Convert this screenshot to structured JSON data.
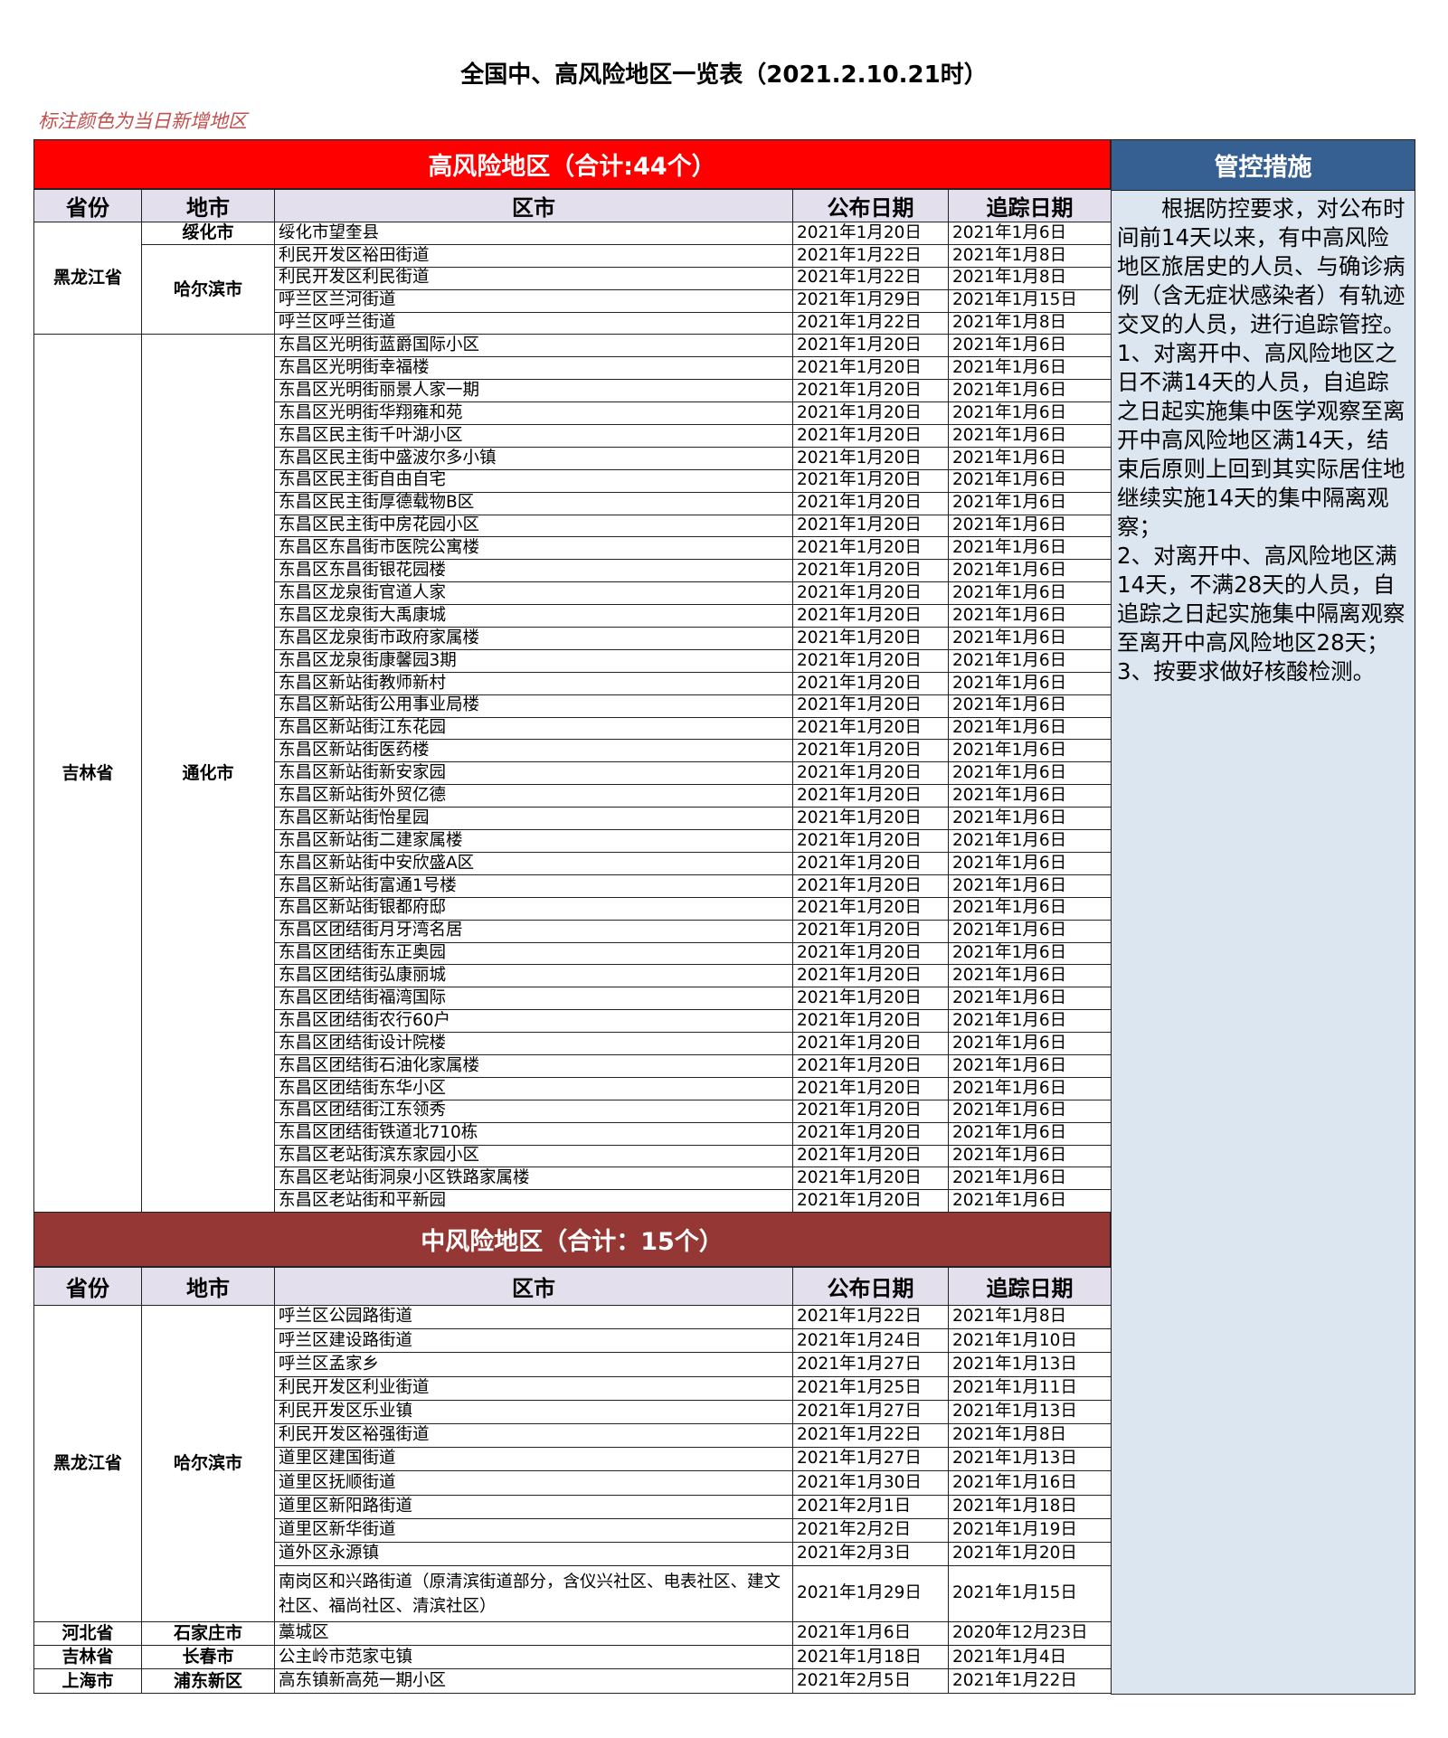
{
  "title": "全国中、高风险地区一览表（2021.2.10.21时）",
  "note": "标注颜色为当日新增地区",
  "colors": {
    "high_banner": "#ff0000",
    "mid_banner": "#953735",
    "control_header": "#366092",
    "control_body": "#dce6f1",
    "column_header": "#e4dfec",
    "note": "#c0504d"
  },
  "columns": [
    "省份",
    "地市",
    "区市",
    "公布日期",
    "追踪日期"
  ],
  "high_risk": {
    "title": "高风险地区（合计:44个）",
    "groups": [
      {
        "province": "黑龙江省",
        "cities": [
          {
            "city": "绥化市",
            "rows": [
              [
                "绥化市望奎县",
                "2021年1月20日",
                "2021年1月6日"
              ]
            ]
          },
          {
            "city": "哈尔滨市",
            "rows": [
              [
                "利民开发区裕田街道",
                "2021年1月22日",
                "2021年1月8日"
              ],
              [
                "利民开发区利民街道",
                "2021年1月22日",
                "2021年1月8日"
              ],
              [
                "呼兰区兰河街道",
                "2021年1月29日",
                "2021年1月15日"
              ],
              [
                "呼兰区呼兰街道",
                "2021年1月22日",
                "2021年1月8日"
              ]
            ]
          }
        ]
      },
      {
        "province": "吉林省",
        "cities": [
          {
            "city": "通化市",
            "rows": [
              [
                "东昌区光明街蓝爵国际小区",
                "2021年1月20日",
                "2021年1月6日"
              ],
              [
                "东昌区光明街幸福楼",
                "2021年1月20日",
                "2021年1月6日"
              ],
              [
                "东昌区光明街丽景人家一期",
                "2021年1月20日",
                "2021年1月6日"
              ],
              [
                "东昌区光明街华翔雍和苑",
                "2021年1月20日",
                "2021年1月6日"
              ],
              [
                "东昌区民主街千叶湖小区",
                "2021年1月20日",
                "2021年1月6日"
              ],
              [
                "东昌区民主街中盛波尔多小镇",
                "2021年1月20日",
                "2021年1月6日"
              ],
              [
                "东昌区民主街自由自宅",
                "2021年1月20日",
                "2021年1月6日"
              ],
              [
                "东昌区民主街厚德载物B区",
                "2021年1月20日",
                "2021年1月6日"
              ],
              [
                "东昌区民主街中房花园小区",
                "2021年1月20日",
                "2021年1月6日"
              ],
              [
                "东昌区东昌街市医院公寓楼",
                "2021年1月20日",
                "2021年1月6日"
              ],
              [
                "东昌区东昌街银花园楼",
                "2021年1月20日",
                "2021年1月6日"
              ],
              [
                "东昌区龙泉街官道人家",
                "2021年1月20日",
                "2021年1月6日"
              ],
              [
                "东昌区龙泉街大禹康城",
                "2021年1月20日",
                "2021年1月6日"
              ],
              [
                "东昌区龙泉街市政府家属楼",
                "2021年1月20日",
                "2021年1月6日"
              ],
              [
                "东昌区龙泉街康馨园3期",
                "2021年1月20日",
                "2021年1月6日"
              ],
              [
                "东昌区新站街教师新村",
                "2021年1月20日",
                "2021年1月6日"
              ],
              [
                "东昌区新站街公用事业局楼",
                "2021年1月20日",
                "2021年1月6日"
              ],
              [
                "东昌区新站街江东花园",
                "2021年1月20日",
                "2021年1月6日"
              ],
              [
                "东昌区新站街医药楼",
                "2021年1月20日",
                "2021年1月6日"
              ],
              [
                "东昌区新站街新安家园",
                "2021年1月20日",
                "2021年1月6日"
              ],
              [
                "东昌区新站街外贸亿德",
                "2021年1月20日",
                "2021年1月6日"
              ],
              [
                "东昌区新站街怡星园",
                "2021年1月20日",
                "2021年1月6日"
              ],
              [
                "东昌区新站街二建家属楼",
                "2021年1月20日",
                "2021年1月6日"
              ],
              [
                "东昌区新站街中安欣盛A区",
                "2021年1月20日",
                "2021年1月6日"
              ],
              [
                "东昌区新站街富通1号楼",
                "2021年1月20日",
                "2021年1月6日"
              ],
              [
                "东昌区新站街银都府邸",
                "2021年1月20日",
                "2021年1月6日"
              ],
              [
                "东昌区团结街月牙湾名居",
                "2021年1月20日",
                "2021年1月6日"
              ],
              [
                "东昌区团结街东正奥园",
                "2021年1月20日",
                "2021年1月6日"
              ],
              [
                "东昌区团结街弘康丽城",
                "2021年1月20日",
                "2021年1月6日"
              ],
              [
                "东昌区团结街福湾国际",
                "2021年1月20日",
                "2021年1月6日"
              ],
              [
                "东昌区团结街农行60户",
                "2021年1月20日",
                "2021年1月6日"
              ],
              [
                "东昌区团结街设计院楼",
                "2021年1月20日",
                "2021年1月6日"
              ],
              [
                "东昌区团结街石油化家属楼",
                "2021年1月20日",
                "2021年1月6日"
              ],
              [
                "东昌区团结街东华小区",
                "2021年1月20日",
                "2021年1月6日"
              ],
              [
                "东昌区团结街江东领秀",
                "2021年1月20日",
                "2021年1月6日"
              ],
              [
                "东昌区团结街铁道北710栋",
                "2021年1月20日",
                "2021年1月6日"
              ],
              [
                "东昌区老站街滨东家园小区",
                "2021年1月20日",
                "2021年1月6日"
              ],
              [
                "东昌区老站街洞泉小区铁路家属楼",
                "2021年1月20日",
                "2021年1月6日"
              ],
              [
                "东昌区老站街和平新园",
                "2021年1月20日",
                "2021年1月6日"
              ]
            ]
          }
        ]
      }
    ]
  },
  "mid_risk": {
    "title": "中风险地区（合计：15个）",
    "groups": [
      {
        "province": "黑龙江省",
        "cities": [
          {
            "city": "哈尔滨市",
            "rows": [
              [
                "呼兰区公园路街道",
                "2021年1月22日",
                "2021年1月8日"
              ],
              [
                "呼兰区建设路街道",
                "2021年1月24日",
                "2021年1月10日"
              ],
              [
                "呼兰区孟家乡",
                "2021年1月27日",
                "2021年1月13日"
              ],
              [
                "利民开发区利业街道",
                "2021年1月25日",
                "2021年1月11日"
              ],
              [
                "利民开发区乐业镇",
                "2021年1月27日",
                "2021年1月13日"
              ],
              [
                "利民开发区裕强街道",
                "2021年1月22日",
                "2021年1月8日"
              ],
              [
                "道里区建国街道",
                "2021年1月27日",
                "2021年1月13日"
              ],
              [
                "道里区抚顺街道",
                "2021年1月30日",
                "2021年1月16日"
              ],
              [
                "道里区新阳路街道",
                "2021年2月1日",
                "2021年1月18日"
              ],
              [
                "道里区新华街道",
                "2021年2月2日",
                "2021年1月19日"
              ],
              [
                "道外区永源镇",
                "2021年2月3日",
                "2021年1月20日"
              ],
              [
                "南岗区和兴路街道（原清滨街道部分，含仪兴社区、电表社区、建文社区、福尚社区、清滨社区）",
                "2021年1月29日",
                "2021年1月15日"
              ]
            ]
          }
        ]
      },
      {
        "province": "河北省",
        "cities": [
          {
            "city": "石家庄市",
            "rows": [
              [
                "藁城区",
                "2021年1月6日",
                "2020年12月23日"
              ]
            ]
          }
        ]
      },
      {
        "province": "吉林省",
        "cities": [
          {
            "city": "长春市",
            "rows": [
              [
                "公主岭市范家屯镇",
                "2021年1月18日",
                "2021年1月4日"
              ]
            ]
          }
        ]
      },
      {
        "province": "上海市",
        "cities": [
          {
            "city": "浦东新区",
            "rows": [
              [
                "高东镇新高苑一期小区",
                "2021年2月5日",
                "2021年1月22日"
              ]
            ]
          }
        ]
      }
    ]
  },
  "control": {
    "title": "管控措施",
    "paragraphs": [
      "根据防控要求，对公布时间前14天以来，有中高风险地区旅居史的人员、与确诊病例（含无症状感染者）有轨迹交叉的人员，进行追踪管控。",
      "1、对离开中、高风险地区之日不满14天的人员，自追踪之日起实施集中医学观察至离开中高风险地区满14天，结束后原则上回到其实际居住地继续实施14天的集中隔离观察；",
      "2、对离开中、高风险地区满14天，不满28天的人员，自追踪之日起实施集中隔离观察至离开中高风险地区28天；",
      "3、按要求做好核酸检测。"
    ]
  }
}
